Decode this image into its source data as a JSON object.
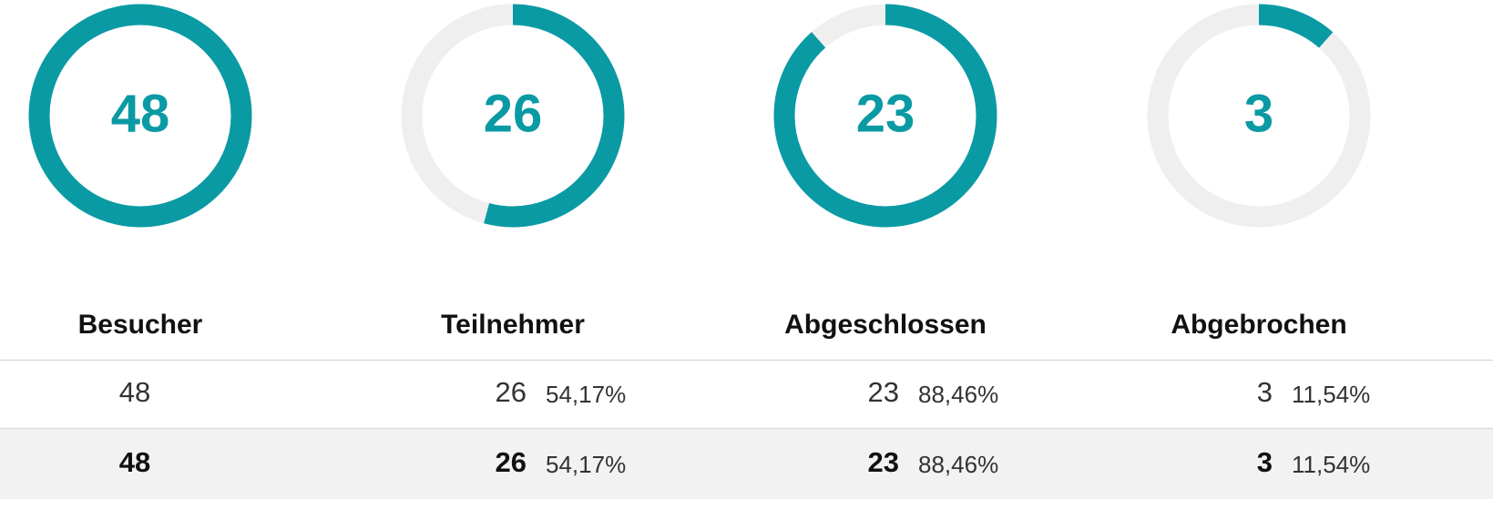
{
  "gauges": [
    {
      "value": 48,
      "percent": 100
    },
    {
      "value": 26,
      "percent": 54.17
    },
    {
      "value": 23,
      "percent": 88.46
    },
    {
      "value": 3,
      "percent": 11.54
    }
  ],
  "table": {
    "header": [
      "Besucher",
      "Teilnehmer",
      "Abgeschlossen",
      "Abgebrochen"
    ],
    "rows": [
      [
        {
          "value": 48
        },
        {
          "value": 26,
          "percent": "54,17%"
        },
        {
          "value": 23,
          "percent": "88,46%"
        },
        {
          "value": 3,
          "percent": "11,54%"
        }
      ],
      [
        {
          "value": 48
        },
        {
          "value": 26,
          "percent": "54,17%"
        },
        {
          "value": 23,
          "percent": "88,46%"
        },
        {
          "value": 3,
          "percent": "11,54%"
        }
      ]
    ]
  }
}
